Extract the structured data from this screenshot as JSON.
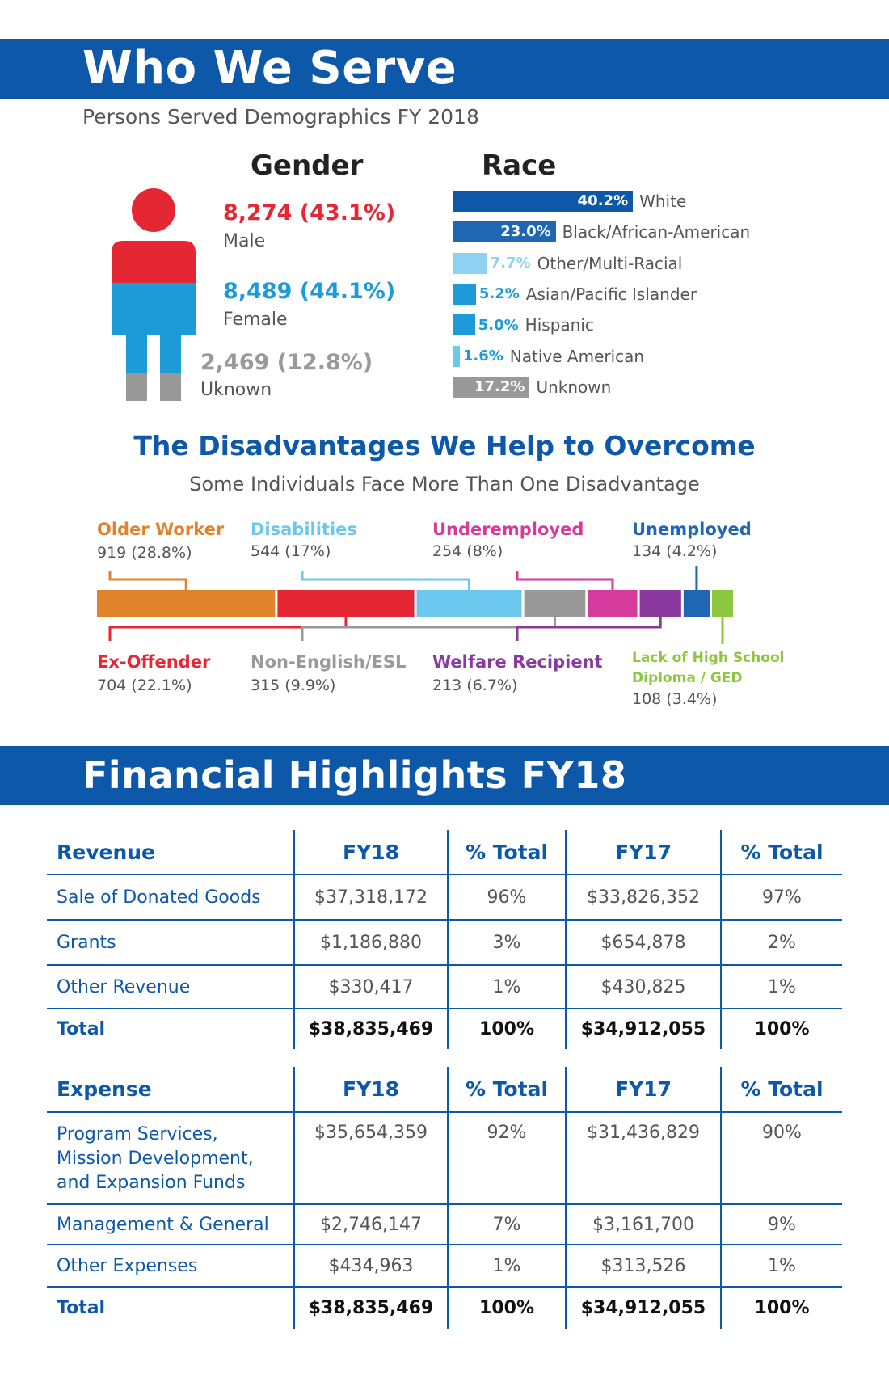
{
  "header": {
    "title": "Who We Serve",
    "subtitle": "Persons Served Demographics FY 2018"
  },
  "gender": {
    "title": "Gender",
    "male": {
      "value": "8,274 (43.1%)",
      "label": "Male",
      "color": "#e52633"
    },
    "female": {
      "value": "8,489 (44.1%)",
      "label": "Female",
      "color": "#1c9bd8"
    },
    "unknown": {
      "value": "2,469 (12.8%)",
      "label": "Uknown",
      "color": "#999999"
    }
  },
  "race": {
    "title": "Race",
    "items": [
      {
        "pct": "40.2%",
        "value": 40.2,
        "name": "White",
        "color": "#0d58a8"
      },
      {
        "pct": "23.0%",
        "value": 23.0,
        "name": "Black/African-American",
        "color": "#1f66b3"
      },
      {
        "pct": "7.7%",
        "value": 7.7,
        "name": "Other/Multi-Racial",
        "color": "#8fd1f0"
      },
      {
        "pct": "5.2%",
        "value": 5.2,
        "name": "Asian/Pacific Islander",
        "color": "#1c9bd8"
      },
      {
        "pct": "5.0%",
        "value": 5.0,
        "name": "Hispanic",
        "color": "#1c9bd8"
      },
      {
        "pct": "1.6%",
        "value": 1.6,
        "name": "Native American",
        "color": "#6dc7ef"
      },
      {
        "pct": "17.2%",
        "value": 17.2,
        "name": "Unknown",
        "color": "#999999"
      }
    ]
  },
  "disadvantages": {
    "title": "The Disadvantages We Help to Overcome",
    "subtitle": "Some Individuals Face More Than One Disadvantage",
    "items": [
      {
        "label": "Older Worker",
        "value": "919 (28.8%)",
        "pct": 28.8,
        "color": "#e0832b"
      },
      {
        "label": "Ex-Offender",
        "value": "704 (22.1%)",
        "pct": 22.1,
        "color": "#e52633"
      },
      {
        "label": "Disabilities",
        "value": "544 (17%)",
        "pct": 17,
        "color": "#6cc8ee"
      },
      {
        "label": "Non-English/ESL",
        "value": "315 (9.9%)",
        "pct": 9.9,
        "color": "#999999"
      },
      {
        "label": "Underemployed",
        "value": "254 (8%)",
        "pct": 8,
        "color": "#d53a9d"
      },
      {
        "label": "Welfare Recipient",
        "value": "213 (6.7%)",
        "pct": 6.7,
        "color": "#8a3a9e"
      },
      {
        "label": "Unemployed",
        "value": "134 (4.2%)",
        "pct": 4.2,
        "color": "#1f66b3"
      },
      {
        "label_line1": "Lack of High School",
        "label_line2": "Diploma / GED",
        "value": "108 (3.4%)",
        "pct": 3.4,
        "color": "#8dc63f"
      }
    ]
  },
  "financial": {
    "title": "Financial Highlights FY18",
    "revenue": {
      "headers": [
        "Revenue",
        "FY18",
        "% Total",
        "FY17",
        "% Total"
      ],
      "rows": [
        [
          "Sale of Donated Goods",
          "$37,318,172",
          "96%",
          "$33,826,352",
          "97%"
        ],
        [
          "Grants",
          "$1,186,880",
          "3%",
          "$654,878",
          "2%"
        ],
        [
          "Other Revenue",
          "$330,417",
          "1%",
          "$430,825",
          "1%"
        ]
      ],
      "total": [
        "Total",
        "$38,835,469",
        "100%",
        "$34,912,055",
        "100%"
      ]
    },
    "expense": {
      "headers": [
        "Expense",
        "FY18",
        "% Total",
        "FY17",
        "% Total"
      ],
      "rows": [
        [
          "Program Services,",
          "$35,654,359",
          "92%",
          "$31,436,829",
          "90%"
        ],
        [
          "Management & General",
          "$2,746,147",
          "7%",
          "$3,161,700",
          "9%"
        ],
        [
          "Other Expenses",
          "$434,963",
          "1%",
          "$313,526",
          "1%"
        ]
      ],
      "program_lines": [
        "Program Services,",
        "Mission Development,",
        "and Expansion Funds"
      ],
      "total": [
        "Total",
        "$38,835,469",
        "100%",
        "$34,912,055",
        "100%"
      ]
    }
  },
  "chart_data": [
    {
      "type": "bar",
      "title": "Race",
      "categories": [
        "White",
        "Black/African-American",
        "Other/Multi-Racial",
        "Asian/Pacific Islander",
        "Hispanic",
        "Native American",
        "Unknown"
      ],
      "values": [
        40.2,
        23.0,
        7.7,
        5.2,
        5.0,
        1.6,
        17.2
      ]
    },
    {
      "type": "bar",
      "title": "The Disadvantages We Help to Overcome",
      "categories": [
        "Older Worker",
        "Ex-Offender",
        "Disabilities",
        "Non-English/ESL",
        "Underemployed",
        "Welfare Recipient",
        "Unemployed",
        "Lack of High School Diploma / GED"
      ],
      "values": [
        919,
        704,
        544,
        315,
        254,
        213,
        134,
        108
      ]
    },
    {
      "type": "table",
      "title": "Gender",
      "categories": [
        "Male",
        "Female",
        "Uknown"
      ],
      "values": [
        8274,
        8489,
        2469
      ]
    }
  ]
}
